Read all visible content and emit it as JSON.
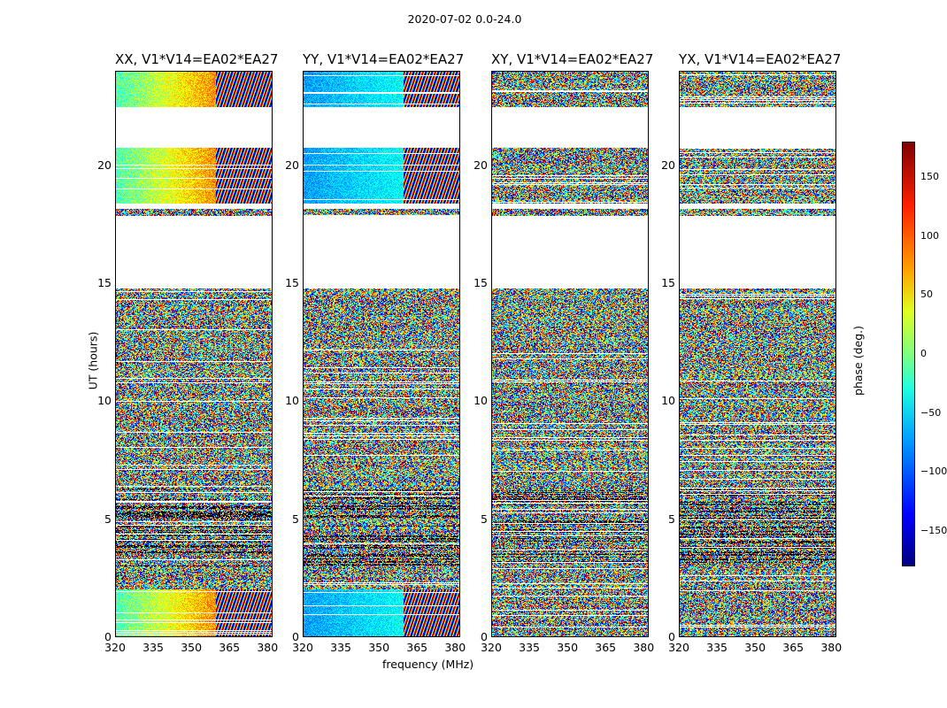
{
  "chart_data": {
    "type": "heatmap",
    "suptitle": "2020-07-02 0.0-24.0",
    "panels": [
      {
        "title": "XX, V1*V14=EA02*EA27",
        "pattern": "parallel_warm"
      },
      {
        "title": "YY, V1*V14=EA02*EA27",
        "pattern": "parallel_cool"
      },
      {
        "title": "XY, V1*V14=EA02*EA27",
        "pattern": "cross_noise"
      },
      {
        "title": "YX, V1*V14=EA02*EA27",
        "pattern": "cross_noise"
      }
    ],
    "xlabel": "frequency (MHz)",
    "ylabel": "UT (hours)",
    "xticks": [
      "320",
      "335",
      "350",
      "365",
      "380"
    ],
    "xlim": [
      320,
      382
    ],
    "yticks": [
      "0",
      "5",
      "10",
      "15",
      "20"
    ],
    "ylim": [
      0,
      24
    ],
    "colorbar": {
      "label": "phase (deg.)",
      "range": [
        -180,
        180
      ],
      "ticks": [
        "150",
        "100",
        "50",
        "0",
        "−50",
        "−100",
        "−150"
      ],
      "colormap": "jet"
    },
    "blank_uт_note": "",
    "gaps_hours": [
      [
        17.0,
        17.9
      ],
      [
        18.2,
        18.4
      ],
      [
        20.8,
        22.5
      ],
      [
        14.8,
        17.0
      ]
    ]
  }
}
